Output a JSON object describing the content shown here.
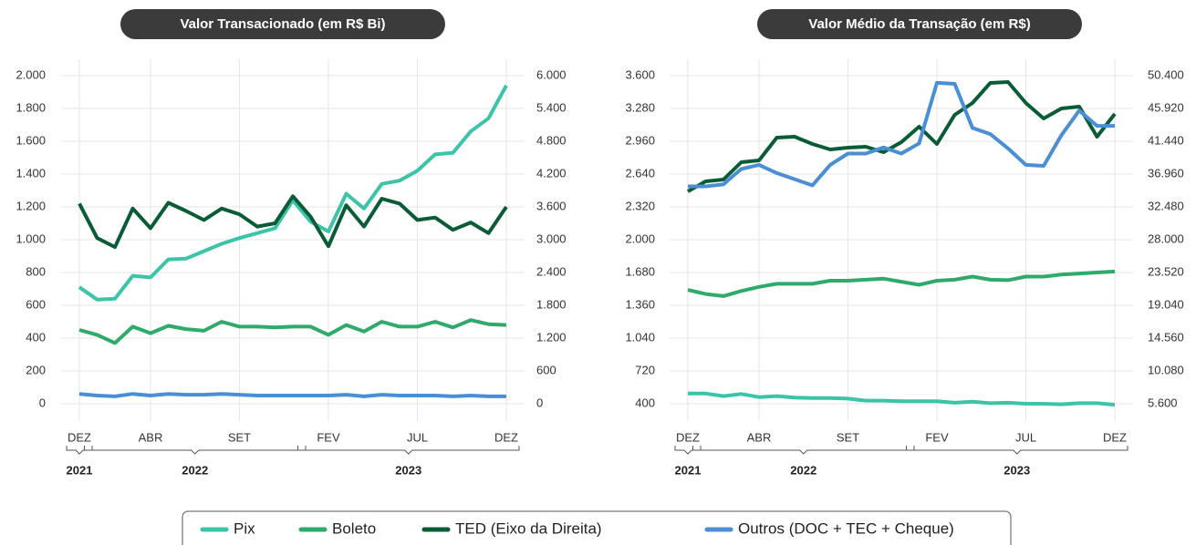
{
  "chart_data": [
    {
      "type": "line",
      "title": "Valor Transacionado (em R$ Bi)",
      "categories": [
        "DEZ",
        null,
        null,
        null,
        "ABR",
        null,
        null,
        null,
        null,
        "SET",
        null,
        null,
        null,
        null,
        "FEV",
        null,
        null,
        null,
        null,
        "JUL",
        null,
        null,
        null,
        null,
        "DEZ"
      ],
      "groups": [
        {
          "label": "2021",
          "start": 0,
          "end": 0
        },
        {
          "label": "2022",
          "start": 1,
          "end": 12
        },
        {
          "label": "2023",
          "start": 13,
          "end": 24
        }
      ],
      "ylim": [
        0,
        2000
      ],
      "yticks": [
        0,
        200,
        400,
        600,
        800,
        {
          "value": 1000,
          "label": "1.000"
        },
        {
          "value": 1200,
          "label": "1.200"
        },
        {
          "value": 1400,
          "label": "1.400"
        },
        {
          "value": 1600,
          "label": "1.600"
        },
        {
          "value": 1800,
          "label": "1.800"
        },
        {
          "value": 2000,
          "label": "2.000"
        }
      ],
      "y2lim": [
        0,
        6000
      ],
      "y2ticks": [
        0,
        600,
        {
          "value": 1200,
          "label": "1.200"
        },
        {
          "value": 1800,
          "label": "1.800"
        },
        {
          "value": 2400,
          "label": "2.400"
        },
        {
          "value": 3000,
          "label": "3.000"
        },
        {
          "value": 3600,
          "label": "3.600"
        },
        {
          "value": 4200,
          "label": "4.200"
        },
        {
          "value": 4800,
          "label": "4.800"
        },
        {
          "value": 5400,
          "label": "5.400"
        },
        {
          "value": 6000,
          "label": "6.000"
        }
      ],
      "grid": true,
      "series": [
        {
          "name": "Pix",
          "color": "#3cc4a8",
          "values": [
            710,
            635,
            640,
            780,
            770,
            880,
            885,
            930,
            975,
            1010,
            1040,
            1070,
            1240,
            1110,
            1050,
            1280,
            1190,
            1340,
            1360,
            1420,
            1520,
            1530,
            1660,
            1740,
            1940
          ]
        },
        {
          "name": "Boleto",
          "color": "#2eaa6a",
          "values": [
            450,
            420,
            370,
            470,
            430,
            475,
            455,
            445,
            500,
            470,
            470,
            465,
            470,
            470,
            420,
            480,
            440,
            500,
            470,
            470,
            500,
            465,
            510,
            485,
            480
          ]
        },
        {
          "name": "TED (Eixo da Direita)",
          "color": "#0a5c36",
          "axis": "y2",
          "values": [
            3660,
            3030,
            2865,
            3570,
            3210,
            3675,
            3525,
            3360,
            3570,
            3465,
            3240,
            3300,
            3795,
            3420,
            2880,
            3630,
            3240,
            3750,
            3660,
            3360,
            3405,
            3180,
            3315,
            3120,
            3600
          ]
        },
        {
          "name": "Outros (DOC + TEC + Cheque)",
          "color": "#4a8fd4",
          "values": [
            60,
            50,
            45,
            60,
            50,
            60,
            55,
            55,
            60,
            55,
            50,
            50,
            50,
            50,
            50,
            55,
            45,
            55,
            50,
            50,
            50,
            45,
            50,
            45,
            45
          ]
        }
      ]
    },
    {
      "type": "line",
      "title": "Valor Médio da Transação (em R$)",
      "categories": [
        "DEZ",
        null,
        null,
        null,
        "ABR",
        null,
        null,
        null,
        null,
        "SET",
        null,
        null,
        null,
        null,
        "FEV",
        null,
        null,
        null,
        null,
        "JUL",
        null,
        null,
        null,
        null,
        "DEZ"
      ],
      "groups": [
        {
          "label": "2021",
          "start": 0,
          "end": 0
        },
        {
          "label": "2022",
          "start": 1,
          "end": 12
        },
        {
          "label": "2023",
          "start": 13,
          "end": 24
        }
      ],
      "ylim": [
        400,
        3600
      ],
      "yticks": [
        400,
        720,
        {
          "value": 1040,
          "label": "1.040"
        },
        {
          "value": 1360,
          "label": "1.360"
        },
        {
          "value": 1680,
          "label": "1.680"
        },
        {
          "value": 2000,
          "label": "2.000"
        },
        {
          "value": 2320,
          "label": "2.320"
        },
        {
          "value": 2640,
          "label": "2.640"
        },
        {
          "value": 2960,
          "label": "2.960"
        },
        {
          "value": 3280,
          "label": "3.280"
        },
        {
          "value": 3600,
          "label": "3.600"
        }
      ],
      "y2lim": [
        5600,
        50400
      ],
      "y2ticks": [
        {
          "value": 5600,
          "label": "5.600"
        },
        {
          "value": 10080,
          "label": "10.080"
        },
        {
          "value": 14560,
          "label": "14.560"
        },
        {
          "value": 19040,
          "label": "19.040"
        },
        {
          "value": 23520,
          "label": "23.520"
        },
        {
          "value": 28000,
          "label": "28.000"
        },
        {
          "value": 32480,
          "label": "32.480"
        },
        {
          "value": 36960,
          "label": "36.960"
        },
        {
          "value": 41440,
          "label": "41.440"
        },
        {
          "value": 45920,
          "label": "45.920"
        },
        {
          "value": 50400,
          "label": "50.400"
        }
      ],
      "grid": true,
      "series": [
        {
          "color": "#3cc4a8",
          "values": [
            500,
            500,
            475,
            495,
            465,
            475,
            460,
            455,
            455,
            450,
            430,
            430,
            425,
            425,
            425,
            410,
            420,
            405,
            410,
            400,
            400,
            395,
            405,
            405,
            390
          ]
        },
        {
          "color": "#2eaa6a",
          "values": [
            1510,
            1470,
            1450,
            1500,
            1540,
            1570,
            1570,
            1570,
            1600,
            1600,
            1610,
            1620,
            1590,
            1560,
            1600,
            1610,
            1640,
            1610,
            1605,
            1640,
            1640,
            1660,
            1670,
            1680,
            1690
          ]
        },
        {
          "color": "#0a5c36",
          "axis": "y2",
          "values": [
            34600,
            35960,
            36210,
            38580,
            38830,
            41940,
            42060,
            41070,
            40320,
            40570,
            40690,
            39950,
            41320,
            43430,
            41070,
            45050,
            46670,
            49400,
            49530,
            46670,
            44550,
            45920,
            46170,
            42060,
            45170
          ]
        },
        {
          "color": "#4a8fd4",
          "values": [
            2520,
            2520,
            2540,
            2690,
            2730,
            2650,
            2590,
            2530,
            2730,
            2840,
            2840,
            2900,
            2840,
            2940,
            3530,
            3520,
            3090,
            3030,
            2890,
            2730,
            2720,
            3020,
            3260,
            3110,
            3110
          ]
        }
      ]
    }
  ]
}
